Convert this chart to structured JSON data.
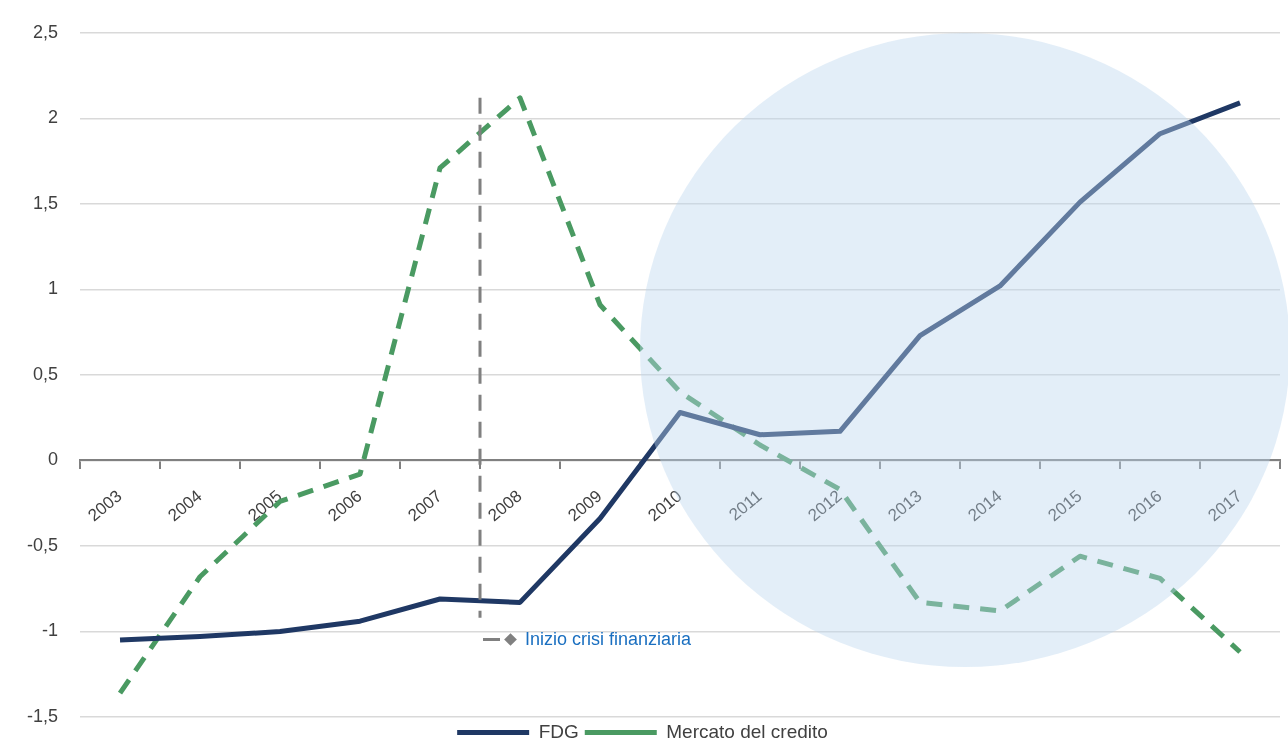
{
  "chart_data": {
    "type": "line",
    "categories": [
      "2003",
      "2004",
      "2005",
      "2006",
      "2007",
      "2008",
      "2009",
      "2010",
      "2011",
      "2012",
      "2013",
      "2014",
      "2015",
      "2016",
      "2017"
    ],
    "series": [
      {
        "name": "FDG",
        "color": "#1f3864",
        "line_style": "solid",
        "values": [
          -1.05,
          -1.03,
          -1.0,
          -0.94,
          -0.81,
          -0.83,
          -0.34,
          0.28,
          0.15,
          0.17,
          0.73,
          1.02,
          1.51,
          1.91,
          2.09
        ]
      },
      {
        "name": "Mercato del credito",
        "color": "#4a9a62",
        "line_style": "dashed",
        "values": [
          -1.36,
          -0.68,
          -0.24,
          -0.08,
          1.71,
          2.12,
          0.91,
          0.4,
          0.09,
          -0.17,
          -0.83,
          -0.88,
          -0.56,
          -0.69,
          -1.12
        ]
      }
    ],
    "ylim": [
      -1.5,
      2.5
    ],
    "yticks": [
      {
        "value": -1.5,
        "label": "-1,5"
      },
      {
        "value": -1,
        "label": "-1"
      },
      {
        "value": -0.5,
        "label": "-0,5"
      },
      {
        "value": 0,
        "label": "0"
      },
      {
        "value": 0.5,
        "label": "0,5"
      },
      {
        "value": 1,
        "label": "1"
      },
      {
        "value": 1.5,
        "label": "1,5"
      },
      {
        "value": 2,
        "label": "2"
      },
      {
        "value": 2.5,
        "label": "2,5"
      }
    ],
    "grid": "y",
    "legend": "bottom",
    "marker": "none",
    "ref_lines": [
      {
        "axis": "x",
        "value": "2008",
        "label": "Inizio crisi finanziaria",
        "color": "#808080",
        "line_style": "dashed"
      }
    ]
  }
}
